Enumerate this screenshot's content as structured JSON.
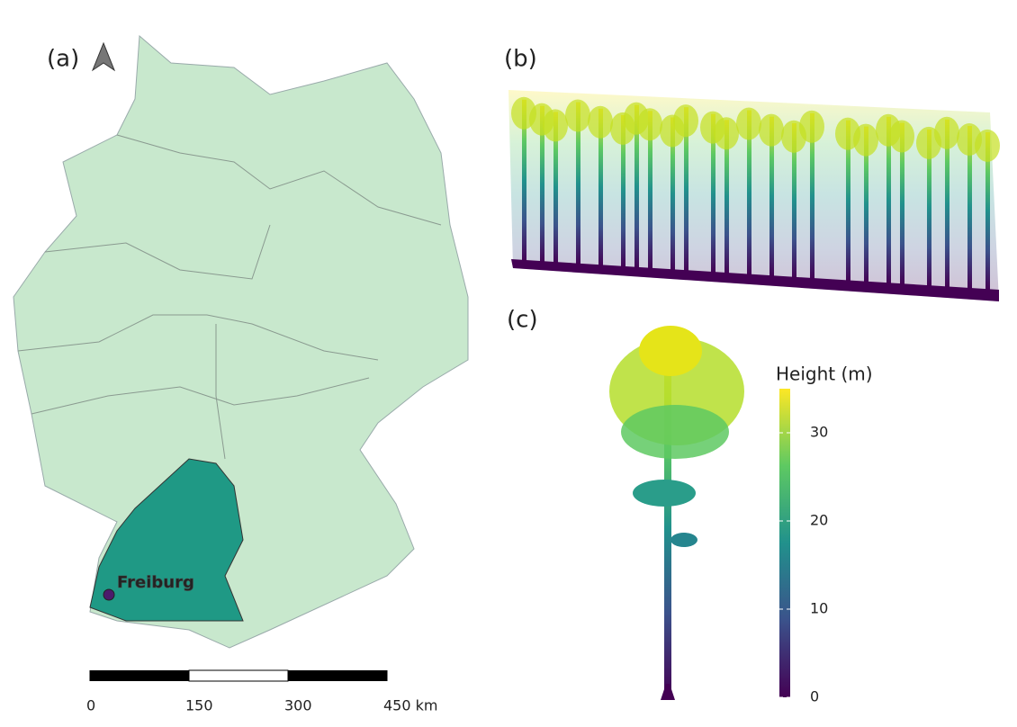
{
  "panels": {
    "a": "(a)",
    "b": "(b)",
    "c": "(c)"
  },
  "map": {
    "city": "Freiburg"
  },
  "scale_bar": {
    "lim": [
      0,
      450
    ],
    "ticks": [
      0,
      150,
      300,
      {
        "value": 450,
        "label": "450 km"
      }
    ]
  },
  "colorbar": {
    "title": "Height (m)",
    "lim": [
      0,
      35
    ],
    "ticks": [
      0,
      10,
      20,
      30
    ]
  }
}
